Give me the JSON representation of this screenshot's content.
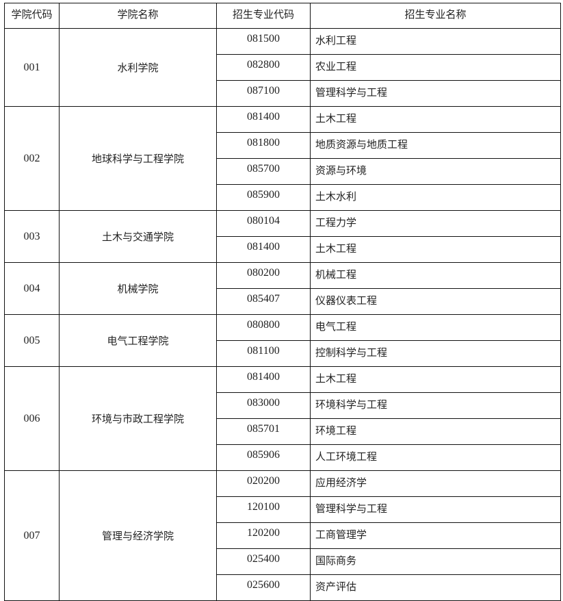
{
  "headers": [
    "学院代码",
    "学院名称",
    "招生专业代码",
    "招生专业名称"
  ],
  "colleges": [
    {
      "code": "001",
      "name": "水利学院",
      "majors": [
        [
          "081500",
          "水利工程"
        ],
        [
          "082800",
          "农业工程"
        ],
        [
          "087100",
          "管理科学与工程"
        ]
      ]
    },
    {
      "code": "002",
      "name": "地球科学与工程学院",
      "majors": [
        [
          "081400",
          "土木工程"
        ],
        [
          "081800",
          "地质资源与地质工程"
        ],
        [
          "085700",
          "资源与环境"
        ],
        [
          "085900",
          "土木水利"
        ]
      ]
    },
    {
      "code": "003",
      "name": "土木与交通学院",
      "majors": [
        [
          "080104",
          "工程力学"
        ],
        [
          "081400",
          "土木工程"
        ]
      ]
    },
    {
      "code": "004",
      "name": "机械学院",
      "majors": [
        [
          "080200",
          "机械工程"
        ],
        [
          "085407",
          "仪器仪表工程"
        ]
      ]
    },
    {
      "code": "005",
      "name": "电气工程学院",
      "majors": [
        [
          "080800",
          "电气工程"
        ],
        [
          "081100",
          "控制科学与工程"
        ]
      ]
    },
    {
      "code": "006",
      "name": "环境与市政工程学院",
      "majors": [
        [
          "081400",
          "土木工程"
        ],
        [
          "083000",
          "环境科学与工程"
        ],
        [
          "085701",
          "环境工程"
        ],
        [
          "085906",
          "人工环境工程"
        ]
      ]
    },
    {
      "code": "007",
      "name": "管理与经济学院",
      "majors": [
        [
          "020200",
          "应用经济学"
        ],
        [
          "120100",
          "管理科学与工程"
        ],
        [
          "120200",
          "工商管理学"
        ],
        [
          "025400",
          "国际商务"
        ],
        [
          "025600",
          "资产评估"
        ]
      ]
    }
  ]
}
